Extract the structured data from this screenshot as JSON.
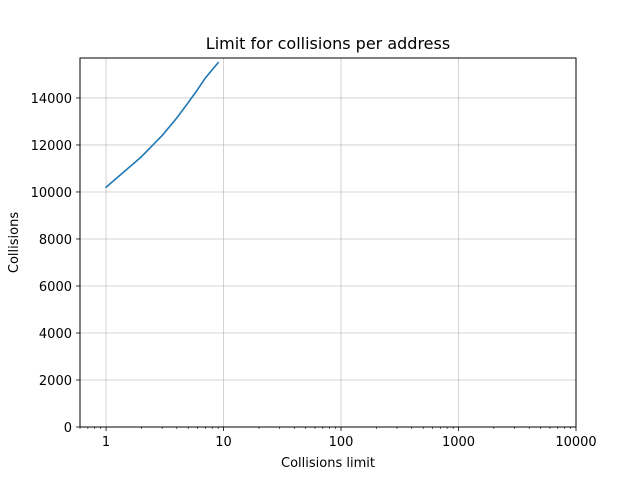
{
  "chart_data": {
    "type": "line",
    "title": "Limit for collisions per address",
    "xlabel": "Collisions limit",
    "ylabel": "Collisions",
    "x_scale": "log",
    "xlim": [
      0.6,
      10000
    ],
    "ylim": [
      0,
      15700
    ],
    "x_ticks": [
      1,
      10,
      100,
      1000,
      10000
    ],
    "x_tick_labels": [
      "1",
      "10",
      "100",
      "1000",
      "10000"
    ],
    "y_ticks": [
      0,
      2000,
      4000,
      6000,
      8000,
      10000,
      12000,
      14000
    ],
    "y_tick_labels": [
      "0",
      "2000",
      "4000",
      "6000",
      "8000",
      "10000",
      "12000",
      "14000"
    ],
    "grid": true,
    "series": [
      {
        "color": "#1f77b4",
        "x": [
          1,
          2,
          3,
          4,
          5,
          6,
          7,
          8,
          9
        ],
        "y": [
          10200,
          11500,
          12400,
          13150,
          13800,
          14350,
          14850,
          15200,
          15500
        ]
      }
    ]
  }
}
